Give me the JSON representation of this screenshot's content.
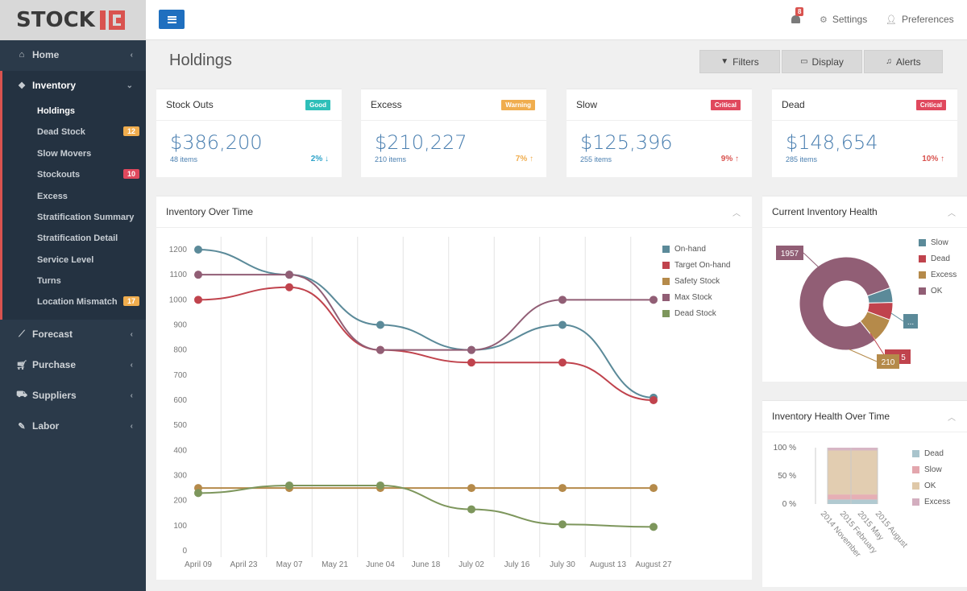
{
  "logo": {
    "text": "STOCK"
  },
  "sidebar": {
    "items": [
      {
        "label": "Home",
        "icon": "home-icon"
      },
      {
        "label": "Inventory",
        "icon": "cubes-icon"
      },
      {
        "label": "Forecast",
        "icon": "line-chart-icon"
      },
      {
        "label": "Purchase",
        "icon": "cart-icon"
      },
      {
        "label": "Suppliers",
        "icon": "truck-icon"
      },
      {
        "label": "Labor",
        "icon": "wrench-icon"
      }
    ],
    "inventory_sub": [
      {
        "label": "Holdings",
        "badge": ""
      },
      {
        "label": "Dead Stock",
        "badge": "12"
      },
      {
        "label": "Slow Movers",
        "badge": ""
      },
      {
        "label": "Stockouts",
        "badge": "10"
      },
      {
        "label": "Excess",
        "badge": ""
      },
      {
        "label": "Stratification Summary",
        "badge": ""
      },
      {
        "label": "Stratification Detail",
        "badge": ""
      },
      {
        "label": "Service Level",
        "badge": ""
      },
      {
        "label": "Turns",
        "badge": ""
      },
      {
        "label": "Location Mismatch",
        "badge": "17"
      }
    ]
  },
  "topbar": {
    "notifications": "8",
    "settings": "Settings",
    "preferences": "Preferences"
  },
  "page": {
    "title": "Holdings",
    "buttons": {
      "filters": "Filters",
      "display": "Display",
      "alerts": "Alerts"
    }
  },
  "kpis": [
    {
      "title": "Stock Outs",
      "badge": "Good",
      "badge_color": "#2ebfb9",
      "value": "$386,200",
      "items": "48 items",
      "pct": "2%",
      "pct_color": "#2ea3c9"
    },
    {
      "title": "Excess",
      "badge": "Warning",
      "badge_color": "#f0ad4e",
      "value": "$210,227",
      "items": "210 items",
      "pct": "7%",
      "pct_color": "#f0ad4e"
    },
    {
      "title": "Slow",
      "badge": "Critical",
      "badge_color": "#e0485d",
      "value": "$125,396",
      "items": "255 items",
      "pct": "9%",
      "pct_color": "#d9534f"
    },
    {
      "title": "Dead",
      "badge": "Critical",
      "badge_color": "#e0485d",
      "value": "$148,654",
      "items": "285 items",
      "pct": "10%",
      "pct_color": "#d9534f"
    }
  ],
  "panels": {
    "inventory_over_time": "Inventory Over Time",
    "current_health": "Current Inventory Health",
    "health_over_time": "Inventory Health Over Time"
  },
  "chart_data": [
    {
      "type": "line",
      "title": "",
      "categories": [
        "April 09",
        "April 23",
        "May 07",
        "May 21",
        "June 04",
        "June 18",
        "July 02",
        "July 16",
        "July 30",
        "August 13",
        "August 27"
      ],
      "ylim": [
        0,
        1200
      ],
      "yticks": [
        0,
        100,
        200,
        300,
        400,
        500,
        600,
        700,
        800,
        900,
        1000,
        1100,
        1200
      ],
      "grid": "vertical",
      "legend": "top-right",
      "series": [
        {
          "name": "On-hand",
          "color": "#5b8a99",
          "points": [
            [
              0,
              1200
            ],
            [
              2,
              1100
            ],
            [
              4,
              900
            ],
            [
              6,
              800
            ],
            [
              8,
              900
            ],
            [
              10,
              610
            ]
          ]
        },
        {
          "name": "Target On-hand",
          "color": "#c0434d",
          "points": [
            [
              0,
              1000
            ],
            [
              2,
              1050
            ],
            [
              4,
              800
            ],
            [
              6,
              750
            ],
            [
              8,
              750
            ],
            [
              10,
              600
            ]
          ]
        },
        {
          "name": "Safety Stock",
          "color": "#b58a4a",
          "points": [
            [
              0,
              250
            ],
            [
              2,
              250
            ],
            [
              4,
              250
            ],
            [
              6,
              250
            ],
            [
              8,
              250
            ],
            [
              10,
              250
            ]
          ]
        },
        {
          "name": "Max Stock",
          "color": "#915e75",
          "points": [
            [
              0,
              1100
            ],
            [
              2,
              1100
            ],
            [
              4,
              800
            ],
            [
              6,
              800
            ],
            [
              8,
              1000
            ],
            [
              10,
              1000
            ]
          ]
        },
        {
          "name": "Dead Stock",
          "color": "#7d965c",
          "points": [
            [
              0,
              230
            ],
            [
              2,
              260
            ],
            [
              4,
              260
            ],
            [
              6,
              165
            ],
            [
              8,
              105
            ],
            [
              10,
              95
            ]
          ]
        }
      ]
    },
    {
      "type": "pie",
      "title": "",
      "legend": "right",
      "slices": [
        {
          "name": "Slow",
          "color": "#5b8a99",
          "value": 125
        },
        {
          "name": "Dead",
          "color": "#c0434d",
          "value": 148
        },
        {
          "name": "Excess",
          "color": "#b58a4a",
          "value": 210
        },
        {
          "name": "OK",
          "color": "#915e75",
          "value": 1957
        }
      ],
      "labels": [
        "1957",
        "...",
        "5",
        "210"
      ]
    },
    {
      "type": "area",
      "title": "",
      "categories": [
        "2014 November",
        "2015 February",
        "2015 May",
        "2015 August"
      ],
      "yticks": [
        "100 %",
        "50 %",
        "0 %"
      ],
      "legend": "right",
      "series": [
        {
          "name": "Dead",
          "color": "#a9c4cc",
          "values": [
            8,
            8,
            8,
            8
          ]
        },
        {
          "name": "Slow",
          "color": "#e3a6ad",
          "values": [
            9,
            9,
            9,
            9
          ]
        },
        {
          "name": "OK",
          "color": "#dfc8a8",
          "values": [
            78,
            78,
            78,
            78
          ]
        },
        {
          "name": "Excess",
          "color": "#d3aebf",
          "values": [
            5,
            5,
            5,
            5
          ]
        }
      ]
    }
  ]
}
